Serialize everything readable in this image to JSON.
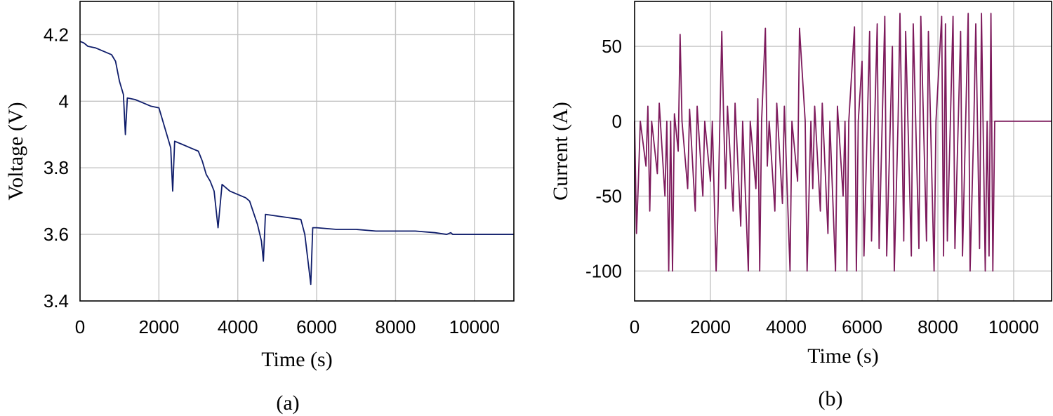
{
  "chart_data": [
    {
      "type": "line",
      "caption": "(a)",
      "xlabel": "Time (s)",
      "ylabel": "Voltage (V)",
      "xlim": [
        0,
        11000
      ],
      "ylim": [
        3.4,
        4.3
      ],
      "xticks": [
        0,
        2000,
        4000,
        6000,
        8000,
        10000
      ],
      "xtick_labels": [
        "0",
        "2000",
        "4000",
        "6000",
        "8000",
        "10000"
      ],
      "yticks": [
        3.4,
        3.6,
        3.8,
        4.0,
        4.2
      ],
      "ytick_labels": [
        "3.4",
        "3.6",
        "3.8",
        "4",
        "4.2"
      ],
      "grid": true,
      "series": [
        {
          "color": "#0f1d6b",
          "x": [
            0,
            100,
            200,
            400,
            600,
            800,
            900,
            1000,
            1100,
            1150,
            1200,
            1400,
            1600,
            1800,
            2000,
            2100,
            2200,
            2300,
            2350,
            2400,
            2600,
            2800,
            3000,
            3100,
            3200,
            3300,
            3400,
            3500,
            3600,
            3800,
            4000,
            4200,
            4300,
            4500,
            4600,
            4650,
            4700,
            5000,
            5300,
            5600,
            5700,
            5800,
            5850,
            5900,
            6000,
            6500,
            7000,
            7500,
            8000,
            8500,
            9000,
            9300,
            9400,
            9450,
            9500,
            10000,
            11000
          ],
          "y": [
            4.18,
            4.175,
            4.165,
            4.16,
            4.15,
            4.14,
            4.12,
            4.06,
            4.02,
            3.9,
            4.01,
            4.005,
            3.995,
            3.985,
            3.98,
            3.94,
            3.9,
            3.86,
            3.73,
            3.88,
            3.87,
            3.86,
            3.85,
            3.82,
            3.78,
            3.76,
            3.73,
            3.62,
            3.75,
            3.73,
            3.72,
            3.71,
            3.7,
            3.63,
            3.58,
            3.52,
            3.66,
            3.655,
            3.65,
            3.645,
            3.6,
            3.5,
            3.45,
            3.62,
            3.62,
            3.615,
            3.615,
            3.61,
            3.61,
            3.61,
            3.605,
            3.6,
            3.605,
            3.6,
            3.6,
            3.6,
            3.6
          ]
        }
      ]
    },
    {
      "type": "line",
      "caption": "(b)",
      "xlabel": "Time (s)",
      "ylabel": "Current (A)",
      "xlim": [
        0,
        11000
      ],
      "ylim": [
        -120,
        80
      ],
      "xticks": [
        0,
        2000,
        4000,
        6000,
        8000,
        10000
      ],
      "xtick_labels": [
        "0",
        "2000",
        "4000",
        "6000",
        "8000",
        "10000"
      ],
      "yticks": [
        -100,
        -50,
        0,
        50
      ],
      "ytick_labels": [
        "-100",
        "-50",
        "0",
        "50"
      ],
      "grid": true,
      "series": [
        {
          "color": "#7d1a5c",
          "x": [
            0,
            50,
            100,
            150,
            300,
            350,
            400,
            450,
            600,
            650,
            800,
            850,
            900,
            950,
            1000,
            1050,
            1150,
            1200,
            1250,
            1400,
            1450,
            1600,
            1650,
            1800,
            1850,
            2000,
            2050,
            2150,
            2200,
            2300,
            2350,
            2400,
            2450,
            2600,
            2650,
            2800,
            2850,
            3000,
            3050,
            3200,
            3250,
            3300,
            3350,
            3450,
            3500,
            3550,
            3700,
            3750,
            3900,
            3950,
            4100,
            4150,
            4300,
            4350,
            4500,
            4550,
            4650,
            4700,
            4750,
            4900,
            4950,
            5100,
            5150,
            5300,
            5350,
            5500,
            5550,
            5600,
            5650,
            5800,
            5850,
            5900,
            6000,
            6050,
            6200,
            6250,
            6400,
            6450,
            6600,
            6650,
            6800,
            6850,
            6950,
            7000,
            7100,
            7150,
            7300,
            7350,
            7500,
            7550,
            7700,
            7750,
            7900,
            7950,
            8100,
            8150,
            8200,
            8250,
            8400,
            8450,
            8600,
            8650,
            8800,
            8850,
            8950,
            9000,
            9100,
            9150,
            9250,
            9300,
            9350,
            9400,
            9450,
            9500,
            10000,
            11000
          ],
          "y": [
            0,
            -75,
            -40,
            0,
            -30,
            10,
            -60,
            0,
            -35,
            12,
            -50,
            0,
            -100,
            0,
            -100,
            5,
            -20,
            58,
            0,
            -45,
            8,
            -60,
            10,
            -50,
            0,
            -40,
            0,
            -100,
            -60,
            60,
            0,
            -45,
            10,
            -60,
            12,
            -70,
            0,
            -100,
            0,
            -45,
            15,
            -100,
            0,
            62,
            -30,
            0,
            -60,
            12,
            -55,
            10,
            -100,
            0,
            -40,
            62,
            0,
            -100,
            0,
            -45,
            10,
            -60,
            12,
            -75,
            0,
            -100,
            10,
            -50,
            0,
            -100,
            0,
            63,
            -100,
            0,
            40,
            -90,
            60,
            -80,
            65,
            -85,
            70,
            -90,
            50,
            -100,
            0,
            72,
            -80,
            60,
            -90,
            65,
            -85,
            70,
            -80,
            60,
            -100,
            0,
            70,
            -90,
            65,
            -80,
            70,
            -85,
            60,
            -90,
            72,
            -100,
            0,
            65,
            -85,
            72,
            -100,
            0,
            -90,
            72,
            -100,
            0,
            0,
            0
          ]
        }
      ]
    }
  ]
}
